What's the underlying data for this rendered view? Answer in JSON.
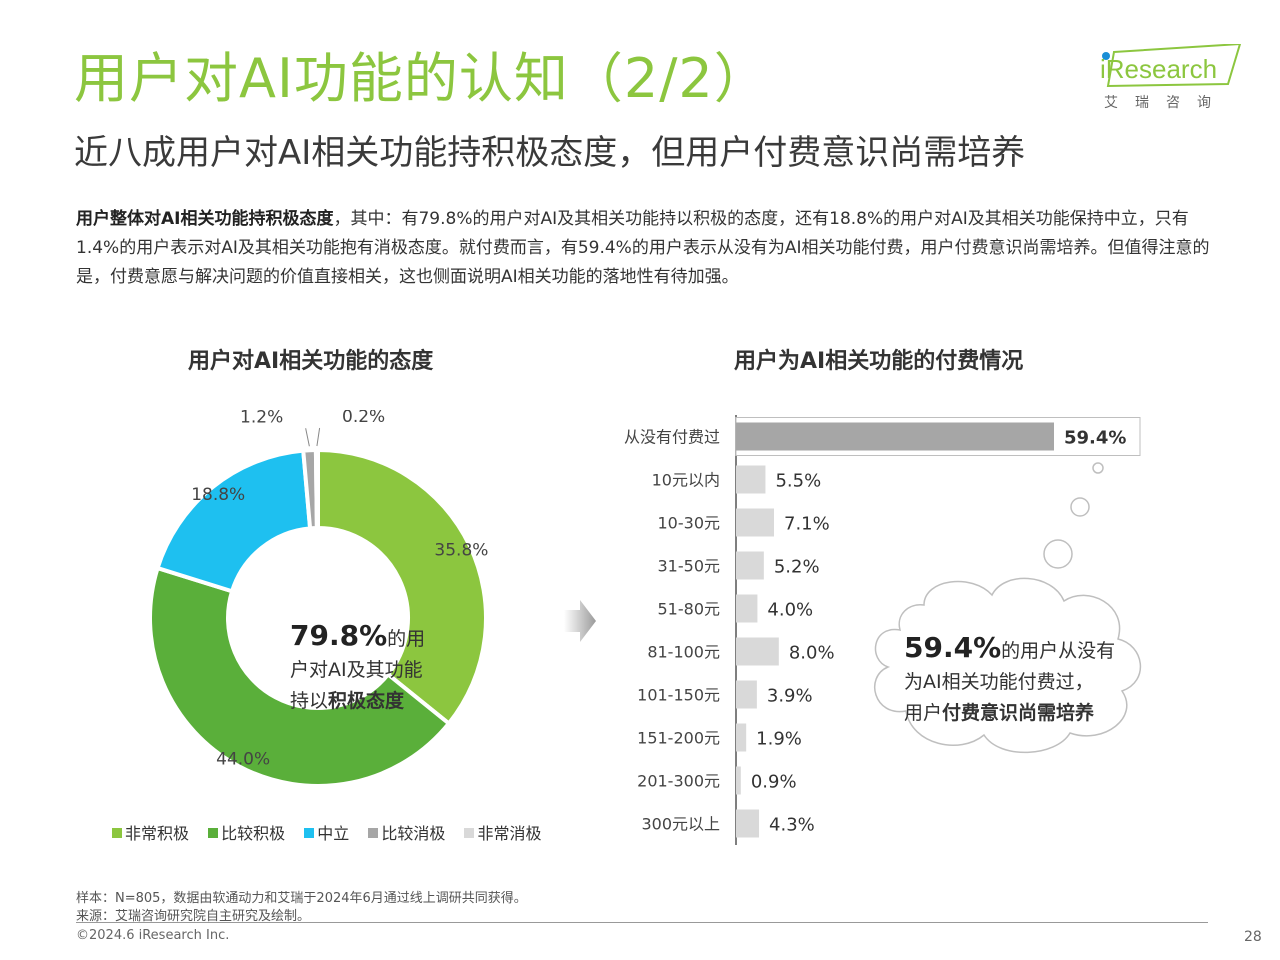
{
  "header": {
    "title": "用户对AI功能的认知（2/2）",
    "subtitle": "近八成用户对AI相关功能持积极态度，但用户付费意识尚需培养",
    "logo_text": "iResearch",
    "logo_cn": "艾瑞咨询"
  },
  "summary": {
    "bold_lead": "用户整体对AI相关功能持积极态度",
    "text": "，其中：有79.8%的用户对AI及其相关功能持以积极的态度，还有18.8%的用户对AI及其相关功能保持中立，只有1.4%的用户表示对AI及其相关功能抱有消极态度。就付费而言，有59.4%的用户表示从没有为AI相关功能付费，用户付费意识尚需培养。但值得注意的是，付费意愿与解决问题的价值直接相关，这也侧面说明AI相关功能的落地性有待加强。"
  },
  "chart_data": [
    {
      "type": "pie",
      "title": "用户对AI相关功能的态度",
      "categories": [
        "非常积极",
        "比较积极",
        "中立",
        "比较消极",
        "非常消极"
      ],
      "values": [
        35.8,
        44.0,
        18.8,
        1.2,
        0.2
      ],
      "labels": [
        "35.8%",
        "44.0%",
        "18.8%",
        "1.2%",
        "0.2%"
      ],
      "colors": [
        "#8cc63f",
        "#5aaf3a",
        "#1ec0f0",
        "#a6a6a6",
        "#d9d9d9"
      ],
      "donut": true,
      "legend": "bottom",
      "center_annotation": {
        "big": "79.8%",
        "line1_rest": "的用",
        "line2": "户对AI及其功能",
        "line3_plain": "持以",
        "line3_bold": "积极态度"
      }
    },
    {
      "type": "bar",
      "orientation": "horizontal",
      "title": "用户为AI相关功能的付费情况",
      "categories": [
        "从没有付费过",
        "10元以内",
        "10-30元",
        "31-50元",
        "51-80元",
        "81-100元",
        "101-150元",
        "151-200元",
        "201-300元",
        "300元以上"
      ],
      "values": [
        59.4,
        5.5,
        7.1,
        5.2,
        4.0,
        8.0,
        3.9,
        1.9,
        0.9,
        4.3
      ],
      "labels": [
        "59.4%",
        "5.5%",
        "7.1%",
        "5.2%",
        "4.0%",
        "8.0%",
        "3.9%",
        "1.9%",
        "0.9%",
        "4.3%"
      ],
      "bar_color": "#d9d9d9",
      "highlight_color": "#a6a6a6",
      "highlight_index": 0
    }
  ],
  "cloud": {
    "big": "59.4%",
    "line1_rest": "的用户从没有",
    "line2": "为AI相关功能付费过，",
    "line3_plain": "用户",
    "line3_bold": "付费意识尚需培养"
  },
  "footer": {
    "sample": "样本：N=805，数据由软通动力和艾瑞于2024年6月通过线上调研共同获得。",
    "source": "来源：艾瑞咨询研究院自主研究及绘制。",
    "copyright": "©2024.6 iResearch Inc.",
    "page": "28"
  }
}
